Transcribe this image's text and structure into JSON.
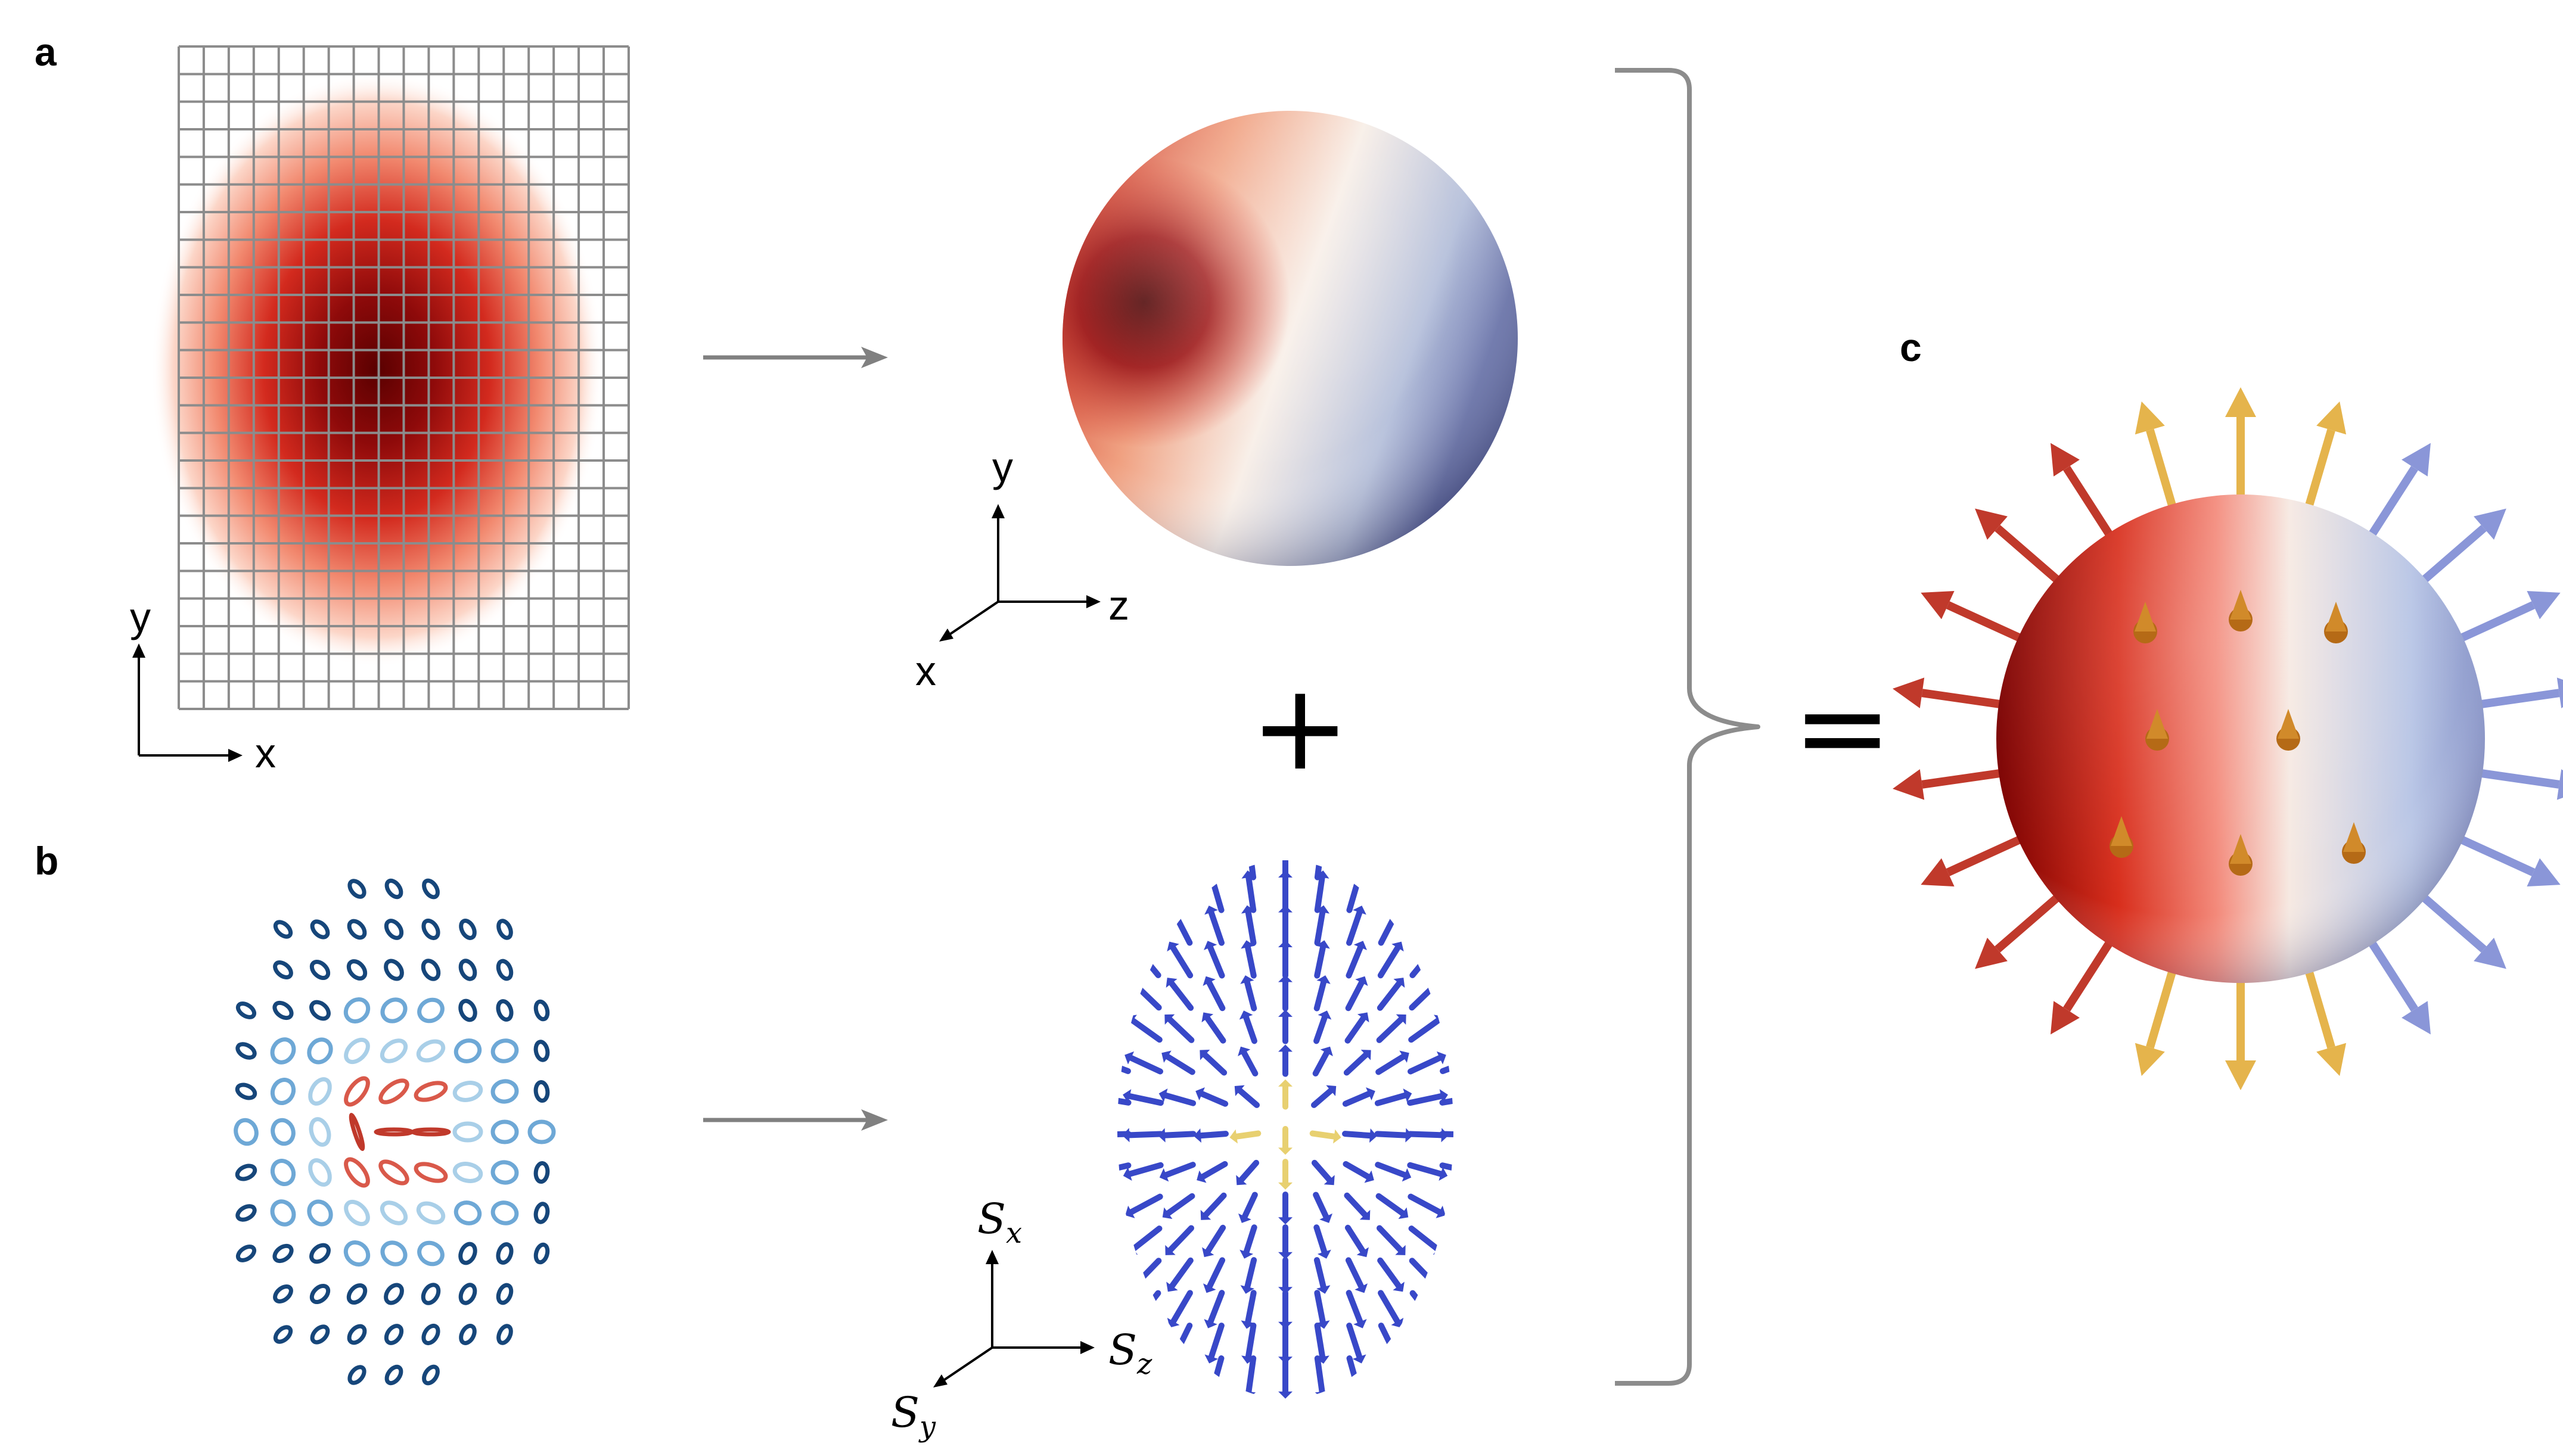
{
  "panels": {
    "a": "a",
    "b": "b",
    "c": "c"
  },
  "axes_a_grid": {
    "x": "x",
    "y": "y"
  },
  "axes_a_sphere": {
    "x": "x",
    "y": "y",
    "z": "z"
  },
  "axes_b_spin": {
    "sx": "S",
    "sx_sub": "x",
    "sy": "S",
    "sy_sub": "y",
    "sz": "S",
    "sz_sub": "z"
  },
  "operators": {
    "plus": "+",
    "equals": "="
  },
  "colors": {
    "dark_red": "#6b0000",
    "red": "#d7301f",
    "white": "#fdf2ec",
    "blue": "#3b4ea3",
    "grid": "#8c8c8c",
    "arrow_gray": "#808080",
    "ring_dark_blue": "#16467a",
    "ring_blue": "#4a8cc4",
    "ring_light_blue": "#a9cfe8",
    "ring_red": "#d14a3a",
    "spin_arrow_blue": "#3848c8",
    "spike_gold": "#e5b44c"
  },
  "icons": [
    "arrow-right-icon",
    "curly-brace-icon",
    "axis-triad-icon"
  ]
}
